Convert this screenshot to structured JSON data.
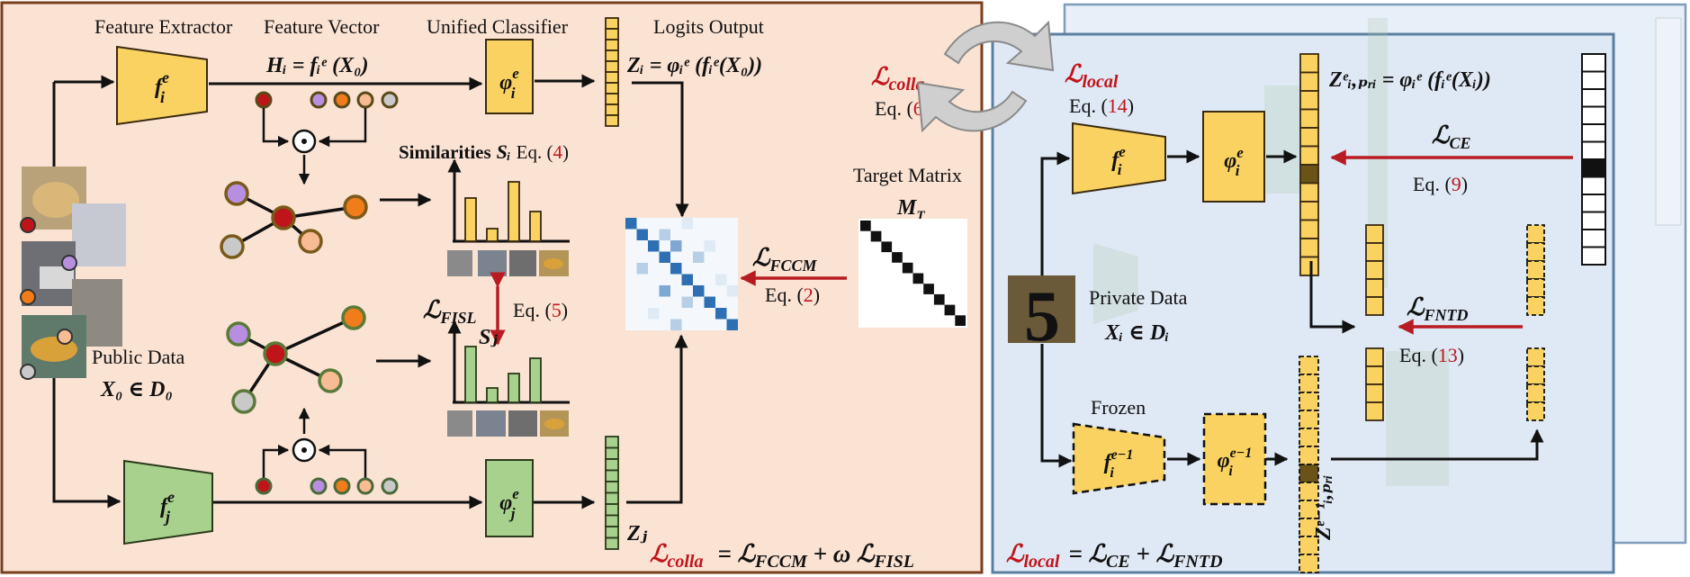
{
  "labels": {
    "feature_extractor": "Feature Extractor",
    "feature_vector": "Feature Vector",
    "unified_classifier": "Unified Classifier",
    "logits_output": "Logits Output",
    "target_matrix": "Target Matrix",
    "public_data": "Public Data",
    "private_data": "Private Data",
    "frozen": "Frozen",
    "similarities": "Similarities",
    "digit_image_text": "5"
  },
  "math": {
    "f_i_e": "f",
    "H_i": "H",
    "H_i_eq": "Hᵢ = fᵢᵉ (X₀)",
    "Z_i_eq": "Zᵢ = φᵢᵉ (fᵢᵉ(X₀))",
    "S_i": "Sᵢ",
    "S_j": "Sⱼ",
    "Z_j": "Zⱼ",
    "M_T": "M",
    "X0_in_D0": "X₀ ∈ D₀",
    "Xi_in_Di": "Xᵢ ∈ Dᵢ",
    "Z_pri_eq": "Zᵉᵢ,ₚᵣᵢ = φᵢᵉ (fᵢᵉ(Xᵢ))",
    "Z_pri_prev": "Zᵉ⁻¹ᵢ,ₚᵣᵢ",
    "loss_colla": "ℒcolla",
    "loss_local": "ℒlocal",
    "loss_fccm": "ℒFCCM",
    "loss_fisl": "ℒFISL",
    "loss_ce": "ℒCE",
    "loss_fntd": "ℒFNTD",
    "loss_colla_full": "ℒcolla = ℒFCCM + ω ℒFISL",
    "loss_local_full": "ℒlocal = ℒCE + ℒFNTD"
  },
  "equations": {
    "eq_open": "Eq. (",
    "eq_close": ")",
    "n2": "2",
    "n4": "4",
    "n5": "5",
    "n6": "6",
    "n9": "9",
    "n13": "13",
    "n14": "14"
  },
  "colors": {
    "left_panel_bg": "#fbe3d4",
    "left_panel_border": "#7a3f1c",
    "right_panel_bg": "#dfe9f5",
    "right_panel_border": "#5b7ea1",
    "yellow": "#f9d262",
    "green": "#a9d18e",
    "red_text": "#c0141b",
    "arrow_red": "#b81c22"
  }
}
